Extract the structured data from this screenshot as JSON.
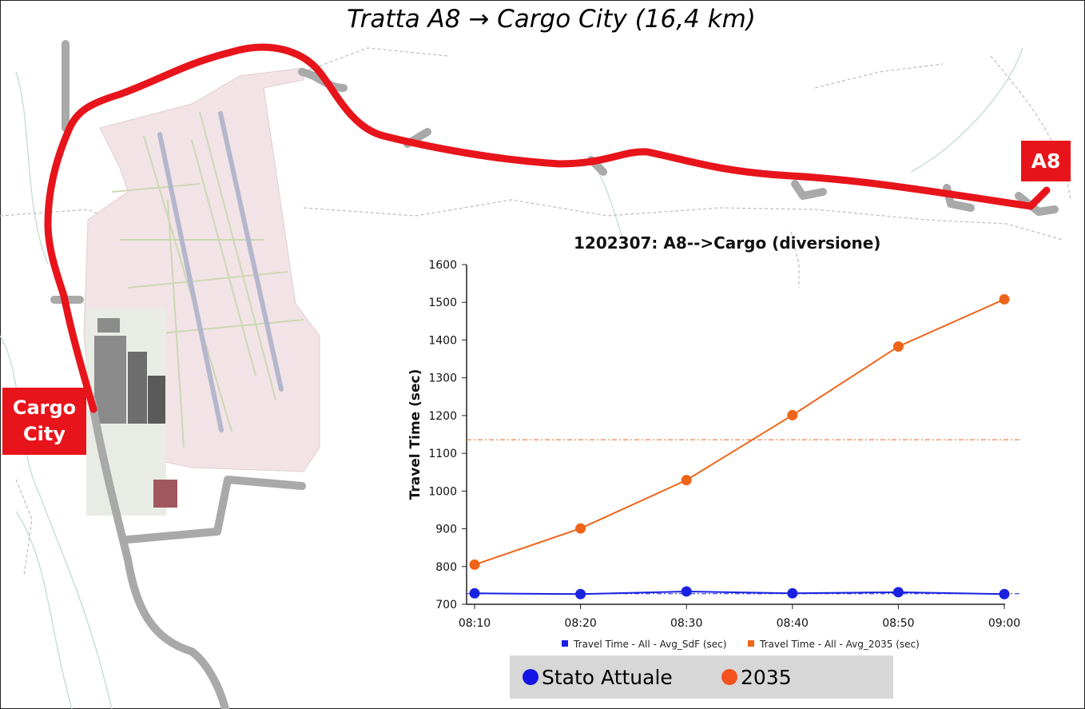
{
  "title": "Tratta A8 → Cargo City (16,4 km)",
  "labels": {
    "a8": "A8",
    "cargo_line1": "Cargo",
    "cargo_line2": "City"
  },
  "colors": {
    "route": "#e8141b",
    "road": "#a9a9a9",
    "airport": "#f1e3e6",
    "runway": "#b4b6cc",
    "sdf": "#1a22e0",
    "y2035": "#ee6418",
    "legend_2035": "#f4511e"
  },
  "chart_data": {
    "type": "line",
    "title": "1202307: A8-->Cargo (diversione)",
    "xlabel": "",
    "ylabel": "Travel Time (sec)",
    "categories": [
      "08:10",
      "08:20",
      "08:30",
      "08:40",
      "08:50",
      "09:00"
    ],
    "ylim": [
      700,
      1600
    ],
    "yticks": [
      700,
      800,
      900,
      1000,
      1100,
      1200,
      1300,
      1400,
      1500,
      1600
    ],
    "grid": false,
    "series": [
      {
        "name": "Travel Time - All - Avg_SdF (sec)",
        "color": "#1a22e0",
        "values": [
          729,
          727,
          734,
          729,
          732,
          727
        ],
        "reference_line": 728
      },
      {
        "name": "Travel Time - All - Avg_2035 (sec)",
        "color": "#ee6418",
        "values": [
          805,
          901,
          1029,
          1201,
          1383,
          1508
        ],
        "reference_line": 1136
      }
    ]
  },
  "legend": {
    "items": [
      {
        "label": "Stato Attuale",
        "color": "#1414e6"
      },
      {
        "label": "2035",
        "color": "#f4511e"
      }
    ]
  }
}
